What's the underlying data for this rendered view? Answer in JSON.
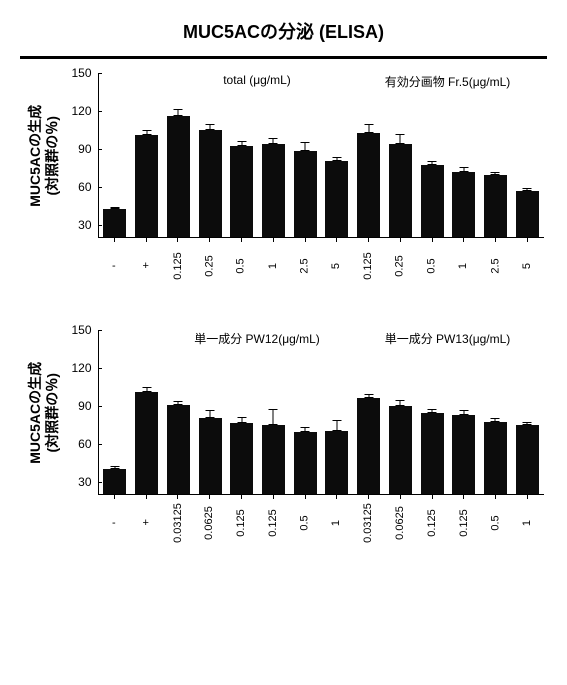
{
  "title": "MUC5ACの分泌 (ELISA)",
  "colors": {
    "bar": "#0c0c0c",
    "axis": "#000000",
    "bg": "#ffffff",
    "text": "#000000"
  },
  "y_axis": {
    "title_line1": "MUC5ACの生成",
    "title_line2": "(対照群の％)",
    "min": 20,
    "max": 150,
    "ticks": [
      30,
      60,
      90,
      120,
      150
    ]
  },
  "chart1": {
    "bars": [
      {
        "label": "-",
        "rotated": false,
        "value": 42,
        "err": 2
      },
      {
        "label": "+",
        "rotated": false,
        "value": 100,
        "err": 4
      },
      {
        "label": "0.125",
        "rotated": true,
        "value": 115,
        "err": 6
      },
      {
        "label": "0.25",
        "rotated": true,
        "value": 104,
        "err": 5
      },
      {
        "label": "0.5",
        "rotated": true,
        "value": 92,
        "err": 4
      },
      {
        "label": "1",
        "rotated": true,
        "value": 93,
        "err": 5
      },
      {
        "label": "2.5",
        "rotated": true,
        "value": 88,
        "err": 7
      },
      {
        "label": "5",
        "rotated": true,
        "value": 80,
        "err": 3
      },
      {
        "label": "0.125",
        "rotated": true,
        "value": 102,
        "err": 7
      },
      {
        "label": "0.25",
        "rotated": true,
        "value": 93,
        "err": 8
      },
      {
        "label": "0.5",
        "rotated": true,
        "value": 77,
        "err": 3
      },
      {
        "label": "1",
        "rotated": true,
        "value": 71,
        "err": 4
      },
      {
        "label": "2.5",
        "rotated": true,
        "value": 69,
        "err": 2
      },
      {
        "label": "5",
        "rotated": true,
        "value": 56,
        "err": 3
      }
    ],
    "groups": [
      {
        "start": 2,
        "end": 7,
        "label": "total (μg/mL)"
      },
      {
        "start": 8,
        "end": 13,
        "label": "有効分画物 Fr.5(μg/mL)"
      }
    ]
  },
  "chart2": {
    "bars": [
      {
        "label": "-",
        "rotated": false,
        "value": 40,
        "err": 2
      },
      {
        "label": "+",
        "rotated": false,
        "value": 100,
        "err": 4
      },
      {
        "label": "0.03125",
        "rotated": true,
        "value": 90,
        "err": 3
      },
      {
        "label": "0.0625",
        "rotated": true,
        "value": 80,
        "err": 6
      },
      {
        "label": "0.125",
        "rotated": true,
        "value": 76,
        "err": 5
      },
      {
        "label": "0.125",
        "rotated": true,
        "value": 74,
        "err": 13
      },
      {
        "label": "0.5",
        "rotated": true,
        "value": 69,
        "err": 4
      },
      {
        "label": "1",
        "rotated": true,
        "value": 70,
        "err": 8
      },
      {
        "label": "0.03125",
        "rotated": true,
        "value": 96,
        "err": 3
      },
      {
        "label": "0.0625",
        "rotated": true,
        "value": 89,
        "err": 5
      },
      {
        "label": "0.125",
        "rotated": true,
        "value": 84,
        "err": 3
      },
      {
        "label": "0.125",
        "rotated": true,
        "value": 82,
        "err": 4
      },
      {
        "label": "0.5",
        "rotated": true,
        "value": 77,
        "err": 3
      },
      {
        "label": "1",
        "rotated": true,
        "value": 74,
        "err": 3
      }
    ],
    "groups": [
      {
        "start": 2,
        "end": 7,
        "label": "単一成分 PW12(μg/mL)"
      },
      {
        "start": 8,
        "end": 13,
        "label": "単一成分 PW13(μg/mL)"
      }
    ]
  }
}
